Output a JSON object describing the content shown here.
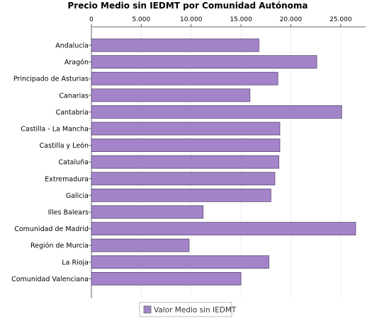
{
  "chart_data": {
    "type": "bar",
    "orientation": "horizontal",
    "title": "Precio Medio sin IEDMT por Comunidad Autónoma",
    "xlabel": "",
    "ylabel": "",
    "xlim": [
      0,
      27500
    ],
    "x_ticks": [
      0,
      5000,
      10000,
      15000,
      20000,
      25000
    ],
    "x_tick_labels": [
      "0",
      "5.000",
      "10.000",
      "15.000",
      "20.000",
      "25.000"
    ],
    "x_axis_position": "top",
    "grid": true,
    "categories": [
      "Andalucía",
      "Aragón",
      "Principado de Asturias",
      "Canarias",
      "Cantabria",
      "Castilla - La Mancha",
      "Castilla y León",
      "Cataluña",
      "Extremadura",
      "Galicia",
      "Illes Balears",
      "Comunidad de Madrid",
      "Región de Murcia",
      "La Rioja",
      "Comunidad Valenciana"
    ],
    "series": [
      {
        "name": "Valor Medio sin IEDMT",
        "color": "#a384c9",
        "values": [
          16800,
          22600,
          18700,
          15900,
          25100,
          18900,
          18900,
          18800,
          18400,
          18000,
          11200,
          26500,
          9800,
          17800,
          15000
        ]
      }
    ],
    "legend_position": "bottom"
  }
}
